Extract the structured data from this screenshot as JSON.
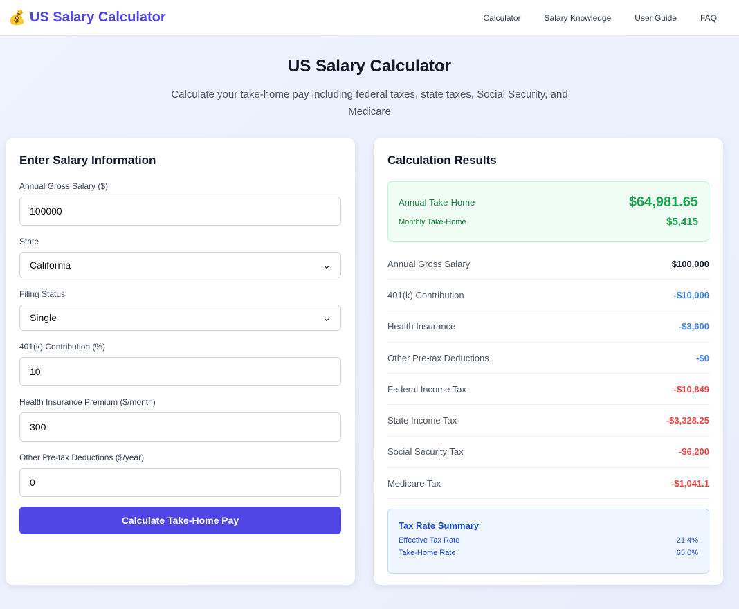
{
  "header": {
    "title": "US Salary Calculator",
    "logo_icon": "money-bag-icon",
    "nav": [
      "Calculator",
      "Salary Knowledge",
      "User Guide",
      "FAQ"
    ]
  },
  "hero": {
    "title": "US Salary Calculator",
    "subtitle": "Calculate your take-home pay including federal taxes, state taxes, Social Security, and Medicare"
  },
  "form": {
    "title": "Enter Salary Information",
    "salary_label": "Annual Gross Salary ($)",
    "salary": "100000",
    "state_label": "State",
    "state": "California",
    "filing_label": "Filing Status",
    "filing": "Single",
    "k401_label": "401(k) Contribution (%)",
    "k401": "10",
    "health_label": "Health Insurance Premium ($/month)",
    "health": "300",
    "other_label": "Other Pre-tax Deductions ($/year)",
    "other": "0",
    "button": "Calculate Take-Home Pay"
  },
  "results": {
    "title": "Calculation Results",
    "annual_label": "Annual Take-Home",
    "annual": "$64,981.65",
    "monthly_label": "Monthly Take-Home",
    "monthly": "$5,415",
    "rows": [
      {
        "label": "Annual Gross Salary",
        "value": "$100,000",
        "color": "#111827"
      },
      {
        "label": "401(k) Contribution",
        "value": "-$10,000",
        "color": "#3b82f6"
      },
      {
        "label": "Health Insurance",
        "value": "-$3,600",
        "color": "#3b82f6"
      },
      {
        "label": "Other Pre-tax Deductions",
        "value": "-$0",
        "color": "#3b82f6"
      },
      {
        "label": "Federal Income Tax",
        "value": "-$10,849",
        "color": "#ef4444"
      },
      {
        "label": "State Income Tax",
        "value": "-$3,328.25",
        "color": "#ef4444"
      },
      {
        "label": "Social Security Tax",
        "value": "-$6,200",
        "color": "#ef4444"
      },
      {
        "label": "Medicare Tax",
        "value": "-$1,041.1",
        "color": "#ef4444"
      }
    ],
    "summary": {
      "title": "Tax Rate Summary",
      "effective_label": "Effective Tax Rate",
      "effective": "21.4%",
      "takehome_label": "Take-Home Rate",
      "takehome": "65.0%"
    }
  }
}
